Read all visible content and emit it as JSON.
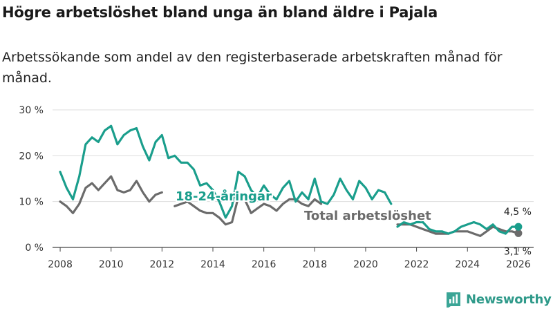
{
  "title": "Högre arbetslöshet bland unga än bland äldre i Pajala",
  "subtitle": "Arbetssökande som andel av den registerbaserade arbetskraften månad för månad.",
  "brand": "Newsworthy",
  "colors": {
    "youth": "#1a9e8c",
    "total": "#6b6b6b",
    "grid": "#dddddd",
    "axis": "#444444",
    "text": "#333333"
  },
  "chart_data": {
    "type": "line",
    "title": "Högre arbetslöshet bland unga än bland äldre i Pajala",
    "subtitle": "Arbetssökande som andel av den registerbaserade arbetskraften månad för månad.",
    "xlabel": "",
    "ylabel": "",
    "xlim": [
      2007.7,
      2026.6
    ],
    "ylim": [
      0,
      30
    ],
    "grid": true,
    "y_ticks": [
      0,
      10,
      20,
      30
    ],
    "y_tick_labels": [
      "0 %",
      "10 %",
      "20 %",
      "30 %"
    ],
    "x_ticks": [
      2008,
      2010,
      2012,
      2014,
      2016,
      2018,
      2020,
      2022,
      2024,
      2026
    ],
    "x_tick_labels": [
      "2008",
      "2010",
      "2012",
      "2014",
      "2016",
      "2018",
      "2020",
      "2022",
      "2024",
      "2026"
    ],
    "series": [
      {
        "name": "18-24-åringar",
        "label": "18-24-åringar",
        "color": "#1a9e8c",
        "end_label": "4,5 %",
        "segments": [
          {
            "x": [
              2008.0,
              2008.25,
              2008.5,
              2008.75,
              2009.0,
              2009.25,
              2009.5,
              2009.75,
              2010.0,
              2010.25,
              2010.5,
              2010.75,
              2011.0,
              2011.25,
              2011.5,
              2011.75,
              2012.0,
              2012.25,
              2012.5,
              2012.75,
              2013.0,
              2013.25,
              2013.5,
              2013.75,
              2014.0,
              2014.25,
              2014.5,
              2014.75,
              2015.0,
              2015.25,
              2015.5,
              2015.75,
              2016.0,
              2016.25,
              2016.5,
              2016.75,
              2017.0,
              2017.25,
              2017.5,
              2017.75,
              2018.0,
              2018.25,
              2018.5,
              2018.75,
              2019.0,
              2019.25,
              2019.5,
              2019.75,
              2020.0,
              2020.25,
              2020.5,
              2020.75,
              2021.0
            ],
            "y": [
              16.5,
              13.0,
              10.5,
              15.5,
              22.5,
              24.0,
              23.0,
              25.5,
              26.5,
              22.5,
              24.5,
              25.5,
              26.0,
              22.0,
              19.0,
              23.0,
              24.5,
              19.5,
              20.0,
              18.5,
              18.5,
              17.0,
              13.5,
              14.0,
              12.5,
              10.0,
              6.5,
              9.0,
              16.5,
              15.5,
              12.5,
              11.0,
              13.5,
              11.5,
              10.5,
              13.0,
              14.5,
              10.0,
              12.0,
              10.5,
              15.0,
              10.0,
              9.5,
              11.5,
              15.0,
              12.5,
              10.5,
              14.5,
              13.0,
              10.5,
              12.5,
              12.0,
              9.5
            ]
          },
          {
            "x": [
              2021.25,
              2021.5,
              2021.75,
              2022.0,
              2022.25,
              2022.5,
              2022.75,
              2023.0,
              2023.25,
              2023.5,
              2023.75,
              2024.0,
              2024.25,
              2024.5,
              2024.75,
              2025.0,
              2025.25,
              2025.5,
              2025.75,
              2026.0
            ],
            "y": [
              4.5,
              5.5,
              5.0,
              5.5,
              5.5,
              4.0,
              3.5,
              3.5,
              3.0,
              3.5,
              4.5,
              5.0,
              5.5,
              5.0,
              4.0,
              5.0,
              3.5,
              3.0,
              4.5,
              4.5
            ]
          }
        ]
      },
      {
        "name": "Total arbetslöshet",
        "label": "Total arbetslöshet",
        "color": "#6b6b6b",
        "end_label": "3,1 %",
        "segments": [
          {
            "x": [
              2008.0,
              2008.25,
              2008.5,
              2008.75,
              2009.0,
              2009.25,
              2009.5,
              2009.75,
              2010.0,
              2010.25,
              2010.5,
              2010.75,
              2011.0,
              2011.25,
              2011.5,
              2011.75,
              2012.0
            ],
            "y": [
              10.0,
              9.0,
              7.5,
              9.5,
              13.0,
              14.0,
              12.5,
              14.0,
              15.5,
              12.5,
              12.0,
              12.5,
              14.5,
              12.0,
              10.0,
              11.5,
              12.0
            ]
          },
          {
            "x": [
              2012.5,
              2012.75,
              2013.0,
              2013.25,
              2013.5,
              2013.75,
              2014.0,
              2014.25,
              2014.5,
              2014.75,
              2015.0,
              2015.25,
              2015.5,
              2015.75,
              2016.0,
              2016.25,
              2016.5,
              2016.75,
              2017.0,
              2017.25,
              2017.5,
              2017.75,
              2018.0,
              2018.25
            ],
            "y": [
              9.0,
              9.5,
              10.0,
              9.0,
              8.0,
              7.5,
              7.5,
              6.5,
              5.0,
              5.5,
              11.0,
              10.5,
              7.5,
              8.5,
              9.5,
              9.0,
              8.0,
              9.5,
              10.5,
              10.5,
              9.5,
              9.0,
              10.5,
              9.5
            ]
          },
          {
            "x": [
              2021.25,
              2021.5,
              2021.75,
              2022.0,
              2022.25,
              2022.5,
              2022.75,
              2023.0,
              2023.25,
              2023.5,
              2023.75,
              2024.0,
              2024.25,
              2024.5,
              2024.75,
              2025.0,
              2025.25,
              2025.5,
              2025.75,
              2026.0
            ],
            "y": [
              5.0,
              5.0,
              5.0,
              4.5,
              4.0,
              3.5,
              3.0,
              3.0,
              3.0,
              3.5,
              3.5,
              3.5,
              3.0,
              2.5,
              3.5,
              4.5,
              4.0,
              3.5,
              3.5,
              3.1
            ]
          }
        ]
      }
    ]
  }
}
